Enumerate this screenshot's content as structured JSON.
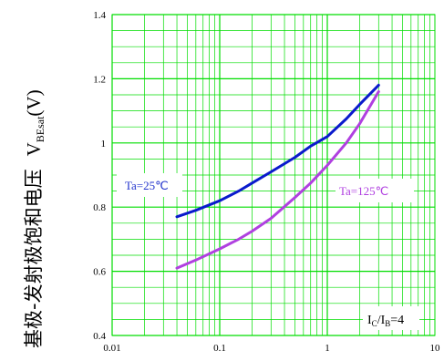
{
  "chart_data": {
    "type": "line",
    "x_scale": "log",
    "xlim": [
      0.01,
      10
    ],
    "ylim": [
      0.4,
      1.4
    ],
    "x_ticks": [
      "0.01",
      "0.1",
      "1",
      "10"
    ],
    "y_ticks": [
      "0.4",
      "0.6",
      "0.8",
      "1",
      "1.2",
      "1.4"
    ],
    "ylabel_cn": "基极-发射极饱和电压",
    "ylabel_symbol": "V",
    "ylabel_subscript": "BEsat",
    "ylabel_unit": "(V)",
    "xlabel": "",
    "grid": true,
    "condition_main": "I",
    "condition_sub1": "C",
    "condition_mid": "/I",
    "condition_sub2": "B",
    "condition_tail": "=4",
    "series": [
      {
        "name": "Ta=25℃",
        "color": "#0a1acc",
        "label_color": "#2233cc",
        "x": [
          0.04,
          0.06,
          0.1,
          0.15,
          0.2,
          0.3,
          0.5,
          0.7,
          1.0,
          1.5,
          2.0,
          3.0
        ],
        "y": [
          0.77,
          0.79,
          0.82,
          0.85,
          0.875,
          0.91,
          0.955,
          0.99,
          1.02,
          1.075,
          1.12,
          1.18
        ]
      },
      {
        "name": "Ta=125℃",
        "color": "#b040e0",
        "label_color": "#b040e0",
        "x": [
          0.04,
          0.06,
          0.1,
          0.15,
          0.2,
          0.3,
          0.5,
          0.7,
          1.0,
          1.5,
          2.0,
          3.0
        ],
        "y": [
          0.61,
          0.635,
          0.67,
          0.7,
          0.725,
          0.765,
          0.83,
          0.875,
          0.93,
          1.0,
          1.06,
          1.16
        ]
      }
    ]
  }
}
